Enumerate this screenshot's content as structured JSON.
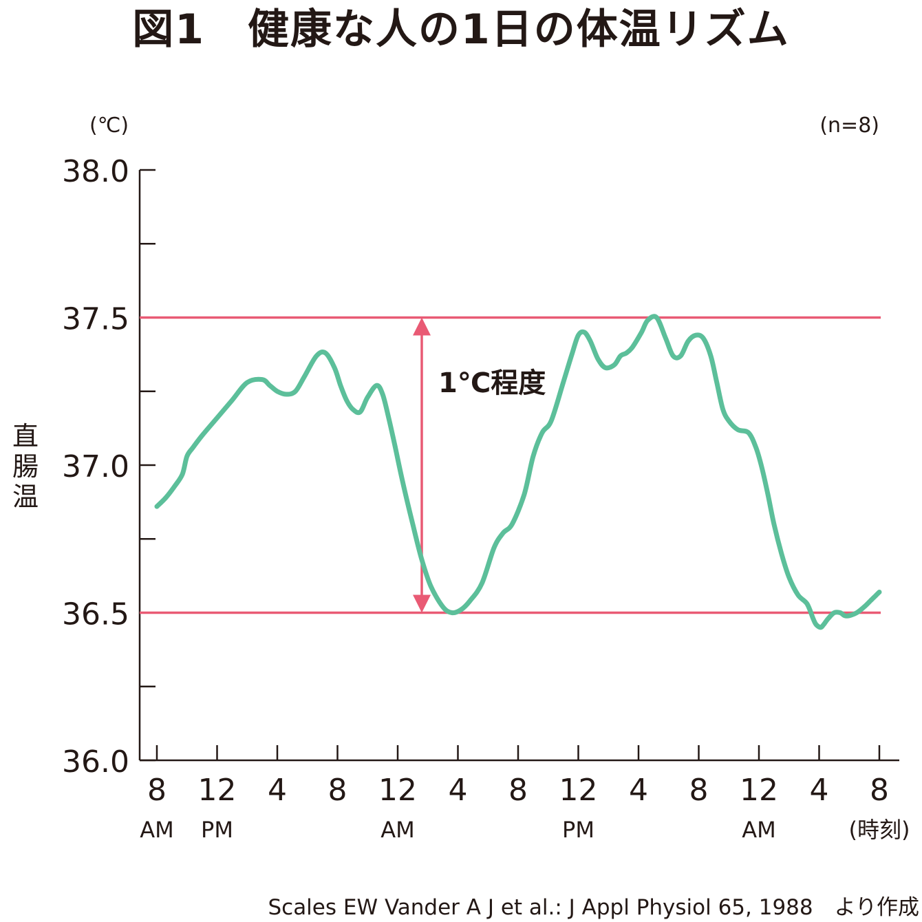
{
  "header": {
    "title": "図1　健康な人の1日の体温リズム",
    "unit": "(℃)",
    "sample": "(n=8)",
    "ylabel": [
      "直",
      "腸",
      "温"
    ],
    "source": "Scales EW Vander A J et al.: J Appl Physiol 65, 1988　より作成"
  },
  "colors": {
    "curve": "#5cbf9a",
    "reference": "#e95a74",
    "axis": "#231815",
    "text": "#231815"
  },
  "chart_data": {
    "type": "line",
    "title": "図1　健康な人の1日の体温リズム",
    "xlabel": "(時刻)",
    "ylabel": "直腸温",
    "ylim": [
      36.0,
      38.0
    ],
    "yticks": [
      "38.0",
      "37.5",
      "37.0",
      "36.5",
      "36.0"
    ],
    "xticks": [
      {
        "hour": 0,
        "label": "8",
        "sub": "AM"
      },
      {
        "hour": 4,
        "label": "12",
        "sub": "PM"
      },
      {
        "hour": 8,
        "label": "4",
        "sub": ""
      },
      {
        "hour": 12,
        "label": "8",
        "sub": ""
      },
      {
        "hour": 16,
        "label": "12",
        "sub": "AM"
      },
      {
        "hour": 20,
        "label": "4",
        "sub": ""
      },
      {
        "hour": 24,
        "label": "8",
        "sub": ""
      },
      {
        "hour": 28,
        "label": "12",
        "sub": "PM"
      },
      {
        "hour": 32,
        "label": "4",
        "sub": ""
      },
      {
        "hour": 36,
        "label": "8",
        "sub": ""
      },
      {
        "hour": 40,
        "label": "12",
        "sub": "AM"
      },
      {
        "hour": 44,
        "label": "4",
        "sub": ""
      },
      {
        "hour": 48,
        "label": "8",
        "sub": "(時刻)"
      }
    ],
    "reference_lines": [
      37.5,
      36.5
    ],
    "annotation": {
      "text": "1℃程度",
      "hour": 17.6,
      "from": 36.5,
      "to": 37.5
    },
    "series": [
      {
        "x": [
          0,
          0.6,
          1.2,
          1.7,
          2.0,
          2.4,
          3.0,
          4.0,
          5.0,
          6.0,
          7.0,
          7.5,
          8.0,
          8.6,
          9.2,
          9.8,
          10.6,
          11.2,
          11.8,
          12.2,
          12.6,
          13.0,
          13.5,
          14.0,
          14.6,
          15.0,
          15.4,
          15.8,
          16.3,
          17.0,
          17.6,
          18.2,
          19.0,
          19.6,
          20.2,
          20.8,
          21.6,
          22.4,
          23.0,
          23.6,
          24.4,
          25.0,
          25.6,
          26.2,
          27.0,
          27.6,
          28.0,
          28.4,
          28.8,
          29.3,
          29.8,
          30.4,
          30.8,
          31.2,
          31.6,
          32.2,
          32.6,
          33.2,
          33.8,
          34.3,
          34.8,
          35.3,
          35.8,
          36.3,
          36.8,
          37.2,
          37.6,
          38.0,
          38.6,
          39.3,
          39.8,
          40.2,
          40.6,
          41.0,
          41.5,
          42.0,
          42.6,
          43.2,
          43.6,
          43.8,
          44.1,
          44.3,
          44.6,
          45.0,
          45.4,
          45.7,
          46.0,
          46.5,
          47.0,
          47.4,
          47.8,
          48.0
        ],
        "y": [
          36.86,
          36.89,
          36.93,
          36.97,
          37.03,
          37.06,
          37.1,
          37.16,
          37.22,
          37.28,
          37.29,
          37.27,
          37.25,
          37.24,
          37.25,
          37.3,
          37.37,
          37.38,
          37.33,
          37.27,
          37.22,
          37.19,
          37.18,
          37.23,
          37.27,
          37.24,
          37.16,
          37.07,
          36.95,
          36.8,
          36.68,
          36.59,
          36.52,
          36.5,
          36.51,
          36.54,
          36.6,
          36.72,
          36.77,
          36.8,
          36.9,
          37.03,
          37.11,
          37.15,
          37.28,
          37.38,
          37.44,
          37.45,
          37.42,
          37.36,
          37.33,
          37.34,
          37.37,
          37.38,
          37.4,
          37.45,
          37.49,
          37.5,
          37.43,
          37.37,
          37.37,
          37.42,
          37.44,
          37.43,
          37.37,
          37.28,
          37.19,
          37.15,
          37.12,
          37.11,
          37.06,
          36.99,
          36.9,
          36.8,
          36.7,
          36.62,
          36.56,
          36.53,
          36.48,
          36.46,
          36.45,
          36.46,
          36.48,
          36.5,
          36.5,
          36.49,
          36.49,
          36.5,
          36.52,
          36.54,
          36.56,
          36.57
        ]
      }
    ]
  }
}
